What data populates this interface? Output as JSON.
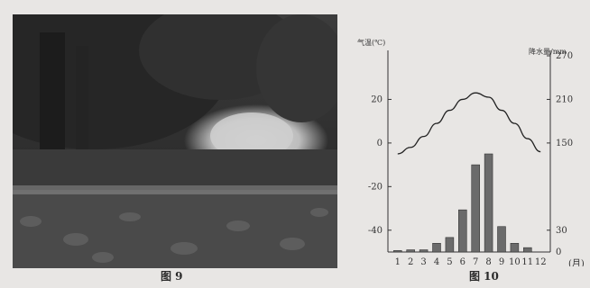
{
  "photo_caption": "图 9",
  "chart_caption": "图 10",
  "chart_data": {
    "type": "bar+line",
    "months": [
      1,
      2,
      3,
      4,
      5,
      6,
      7,
      8,
      9,
      10,
      11,
      12
    ],
    "x_tick_labels": [
      "1",
      "2",
      "3",
      "4",
      "5",
      "6",
      "7",
      "8",
      "9",
      "10",
      "11",
      "12"
    ],
    "x_unit": "(月)",
    "temperature": {
      "label": "气温(℃)",
      "values": [
        -5,
        -2,
        3,
        9,
        15,
        20,
        23,
        21,
        15,
        9,
        2,
        -4
      ],
      "ylim": [
        -50,
        40
      ],
      "ticks": [
        "20",
        "0",
        "-20",
        "-40"
      ]
    },
    "precipitation": {
      "label": "降水量/mm",
      "values": [
        2,
        3,
        3,
        12,
        20,
        58,
        120,
        135,
        35,
        12,
        6,
        0
      ],
      "ylim": [
        0,
        270
      ],
      "ticks": [
        "270",
        "210",
        "150",
        "30",
        "0"
      ]
    }
  }
}
